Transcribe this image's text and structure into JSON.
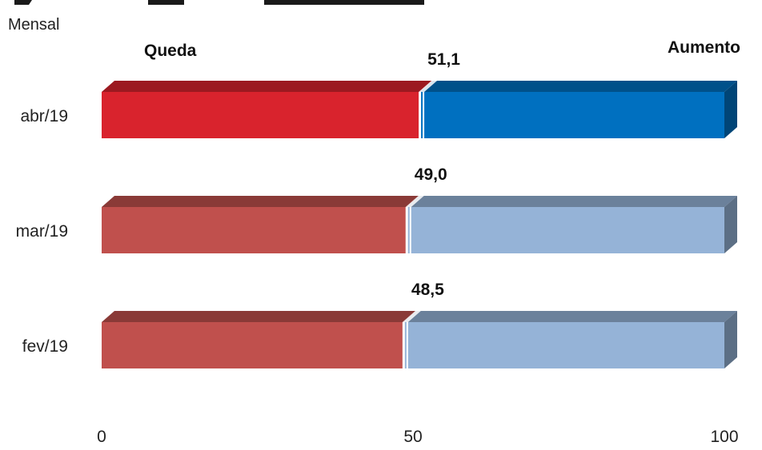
{
  "chart_data": {
    "type": "bar",
    "subtitle": "Mensal",
    "left_label": "Queda",
    "right_label": "Aumento",
    "categories": [
      "abr/19",
      "mar/19",
      "fev/19"
    ],
    "values": [
      51.1,
      49.0,
      48.5
    ],
    "value_labels": [
      "51,1",
      "49,0",
      "48,5"
    ],
    "xlim": [
      0,
      100
    ],
    "x_ticks": [
      0,
      50,
      100
    ],
    "x_tick_labels": [
      "0",
      "50",
      "100"
    ],
    "grid": false,
    "colors": {
      "highlight": {
        "left": "#d9232d",
        "right": "#0070c0"
      },
      "muted": {
        "left": "#c0504d",
        "right": "#95b3d7"
      }
    },
    "highlight_rows": [
      0
    ]
  }
}
